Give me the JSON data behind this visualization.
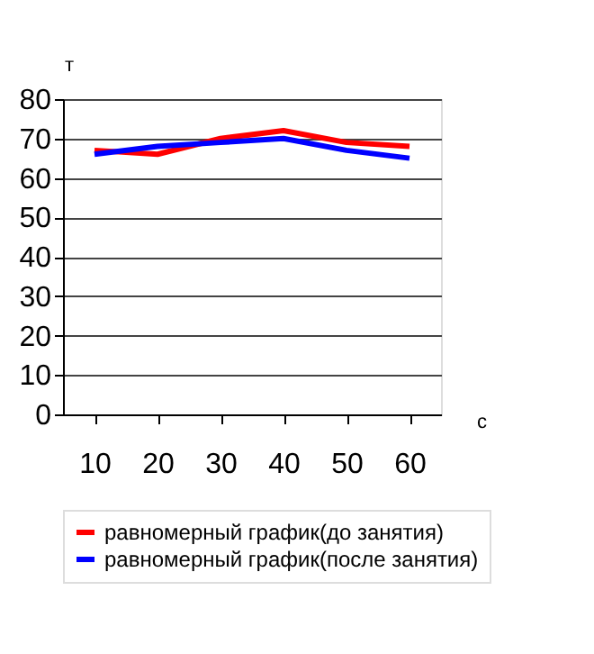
{
  "chart_data": {
    "type": "line",
    "xlabel": "с",
    "ylabel": "т",
    "categories": [
      "10",
      "20",
      "30",
      "40",
      "50",
      "60"
    ],
    "series": [
      {
        "name": "равномерный график(до занятия)",
        "color": "#ff0000",
        "values": [
          67,
          66,
          70,
          72,
          69,
          68
        ]
      },
      {
        "name": "равномерный график(после занятия)",
        "color": "#0000ff",
        "values": [
          66,
          68,
          69,
          70,
          67,
          65
        ]
      }
    ],
    "ylim": [
      0,
      80
    ],
    "yticks": [
      0,
      10,
      20,
      30,
      40,
      50,
      60,
      70,
      80
    ],
    "grid": "y",
    "legend": "bottom",
    "marker": "none",
    "line_style": "solid"
  }
}
